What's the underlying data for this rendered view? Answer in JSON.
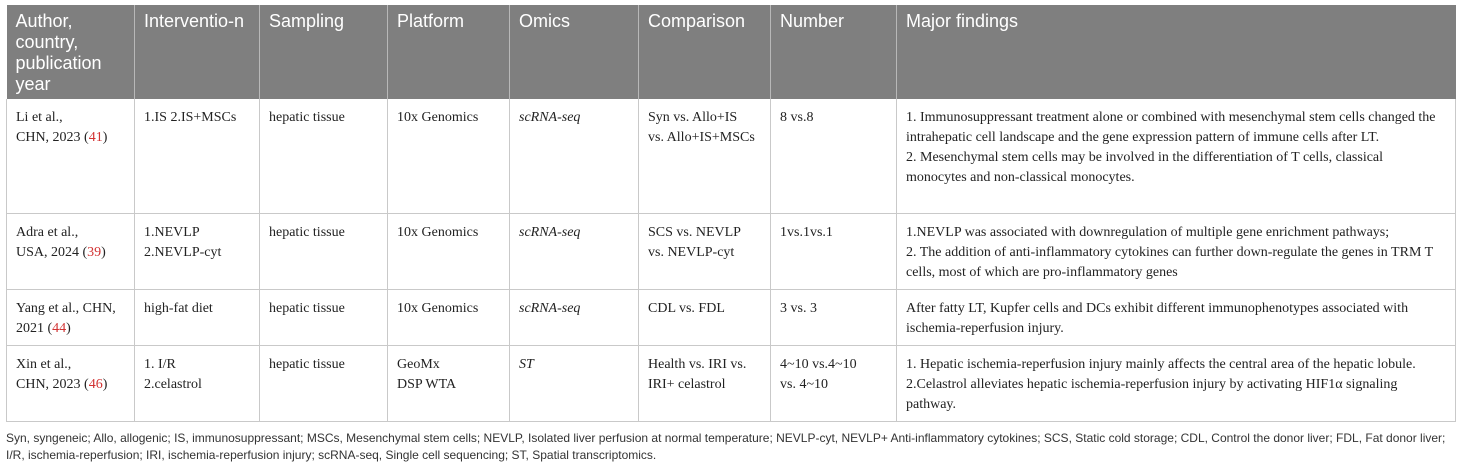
{
  "headers": [
    "Author, country, publication year",
    "Interventio-n",
    "Sampling",
    "Platform",
    "Omics",
    "Comparison",
    "Number",
    "Major findings"
  ],
  "rows": [
    {
      "author_line1": "Li et al.,",
      "author_line2_pre": "CHN, 2023 (",
      "ref": "41",
      "author_line2_post": ")",
      "intervention": [
        "1.IS 2.IS+MSCs"
      ],
      "sampling": "hepatic tissue",
      "platform": [
        "10x Genomics"
      ],
      "omics": "scRNA-seq",
      "comparison": [
        "Syn vs. Allo+IS",
        "vs. Allo+IS+MSCs"
      ],
      "number": [
        "8 vs.8"
      ],
      "findings": [
        "1. Immunosuppressant treatment alone or combined with mesenchymal stem cells changed the intrahepatic cell landscape and the gene expression pattern of immune cells after LT.",
        "2. Mesenchymal stem cells may be involved in the differentiation of T cells, classical monocytes and non-classical monocytes."
      ]
    },
    {
      "author_line1": "Adra et al.,",
      "author_line2_pre": "USA, 2024 (",
      "ref": "39",
      "author_line2_post": ")",
      "intervention": [
        "1.NEVLP",
        "2.NEVLP-cyt"
      ],
      "sampling": "hepatic tissue",
      "platform": [
        "10x Genomics"
      ],
      "omics": "scRNA-seq",
      "comparison": [
        "SCS vs. NEVLP",
        "vs. NEVLP-cyt"
      ],
      "number": [
        "1vs.1vs.1"
      ],
      "findings": [
        "1.NEVLP was associated with downregulation of multiple gene enrichment pathways;",
        "2. The addition of anti-inflammatory cytokines can further down-regulate the genes in TRM T cells, most of which are pro-inflammatory genes"
      ]
    },
    {
      "author_line1": "Yang et al., CHN,",
      "author_line2_pre": "2021 (",
      "ref": "44",
      "author_line2_post": ")",
      "intervention": [
        "high-fat diet"
      ],
      "sampling": "hepatic tissue",
      "platform": [
        "10x Genomics"
      ],
      "omics": "scRNA-seq",
      "comparison": [
        "CDL vs. FDL"
      ],
      "number": [
        "3 vs. 3"
      ],
      "findings": [
        "After fatty LT, Kupfer cells and DCs exhibit different immunophenotypes associated with ischemia-reperfusion injury."
      ]
    },
    {
      "author_line1": "Xin et al.,",
      "author_line2_pre": "CHN, 2023 (",
      "ref": "46",
      "author_line2_post": ")",
      "intervention": [
        "1. I/R",
        "2.celastrol"
      ],
      "sampling": "hepatic tissue",
      "platform": [
        "GeoMx",
        "DSP WTA"
      ],
      "omics": "ST",
      "comparison": [
        "Health vs. IRI vs.",
        "IRI+ celastrol"
      ],
      "number": [
        "4~10 vs.4~10",
        "vs. 4~10"
      ],
      "findings": [
        "1. Hepatic ischemia-reperfusion injury mainly affects the central area of the hepatic lobule.",
        "2.Celastrol alleviates hepatic ischemia-reperfusion injury by activating HIF1α signaling pathway."
      ]
    }
  ],
  "footnote": "Syn, syngeneic; Allo, allogenic; IS, immunosuppressant; MSCs, Mesenchymal stem cells; NEVLP, Isolated liver perfusion at normal temperature; NEVLP-cyt, NEVLP+ Anti-inflammatory cytokines; SCS, Static cold storage; CDL, Control the donor liver; FDL, Fat donor liver; I/R, ischemia-reperfusion; IRI, ischemia-reperfusion injury; scRNA-seq, Single cell sequencing; ST, Spatial transcriptomics."
}
